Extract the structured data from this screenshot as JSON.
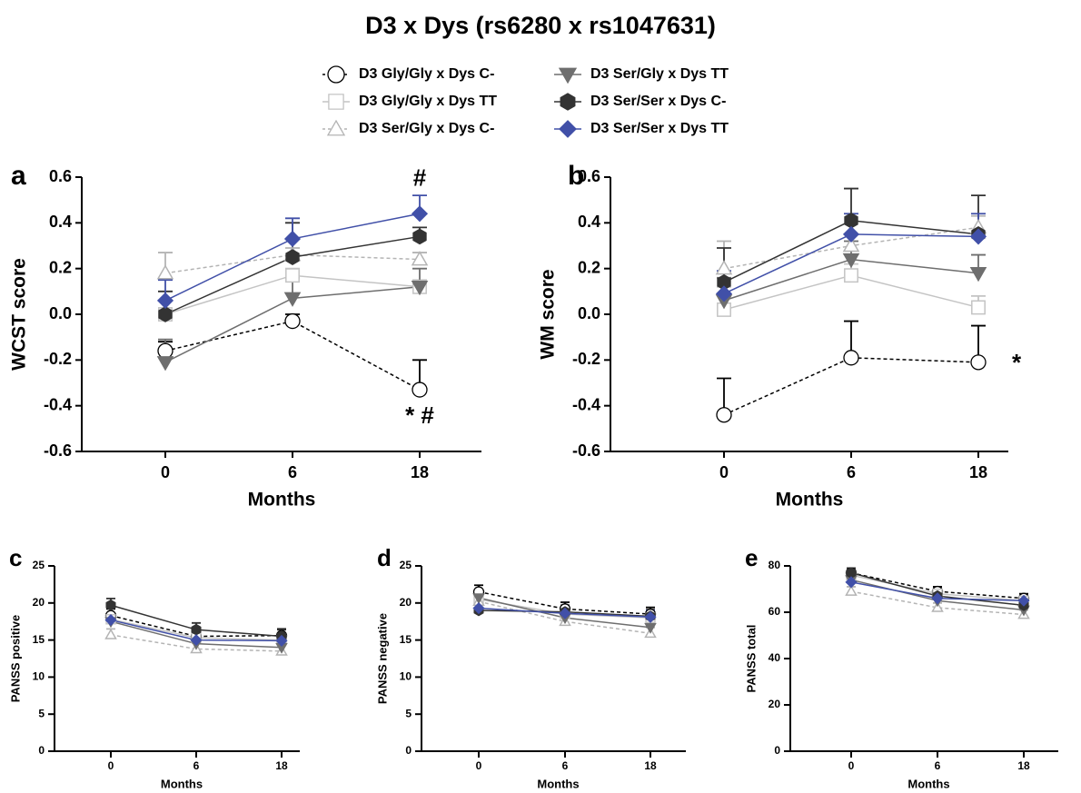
{
  "title": "D3 x Dys (rs6280 x rs1047631)",
  "legend": [
    {
      "name": "D3 Gly/Gly x Dys C-",
      "color": "#000000",
      "marker": "circle",
      "filled": false,
      "dashed": true
    },
    {
      "name": "D3 Gly/Gly x Dys TT",
      "color": "#c4c4c4",
      "marker": "square",
      "filled": false,
      "dashed": false
    },
    {
      "name": "D3 Ser/Gly x Dys C-",
      "color": "#b4b4b4",
      "marker": "triangle-up",
      "filled": false,
      "dashed": true
    },
    {
      "name": "D3 Ser/Gly x Dys TT",
      "color": "#6e6e6e",
      "marker": "triangle-down",
      "filled": true,
      "dashed": false
    },
    {
      "name": "D3 Ser/Ser x Dys C-",
      "color": "#333333",
      "marker": "hexagon",
      "filled": true,
      "dashed": false
    },
    {
      "name": "D3 Ser/Ser x Dys TT",
      "color": "#4150a8",
      "marker": "diamond",
      "filled": true,
      "dashed": false
    }
  ],
  "chart_data": [
    {
      "type": "line",
      "panel": "a",
      "ylabel": "WCST score",
      "xlabel": "Months",
      "categories": [
        "0",
        "6",
        "18"
      ],
      "ylim": [
        -0.6,
        0.6
      ],
      "yticks": [
        -0.6,
        -0.4,
        -0.2,
        {
          "value": 0,
          "label": "0.0"
        },
        0.2,
        0.4,
        0.6
      ],
      "series": [
        {
          "values": [
            -0.16,
            -0.03,
            -0.33
          ],
          "errors": [
            0.04,
            0.03,
            0.13
          ]
        },
        {
          "values": [
            0.0,
            0.17,
            0.12
          ],
          "errors": [
            0.02,
            0.03,
            0.03
          ]
        },
        {
          "values": [
            0.18,
            0.26,
            0.24
          ],
          "errors": [
            0.09,
            0.03,
            0.03
          ]
        },
        {
          "values": [
            -0.21,
            0.07,
            0.12
          ],
          "errors": [
            0.1,
            0.09,
            0.08
          ]
        },
        {
          "values": [
            0.0,
            0.25,
            0.34
          ],
          "errors": [
            0.1,
            0.15,
            0.04
          ]
        },
        {
          "values": [
            0.06,
            0.33,
            0.44
          ],
          "errors": [
            0.09,
            0.09,
            0.08
          ]
        }
      ],
      "annotations": [
        {
          "text": "#",
          "category": 2,
          "y": 0.59
        },
        {
          "text": "* #",
          "category": 2,
          "y": -0.45
        }
      ]
    },
    {
      "type": "line",
      "panel": "b",
      "ylabel": "WM score",
      "xlabel": "Months",
      "categories": [
        "0",
        "6",
        "18"
      ],
      "ylim": [
        -0.6,
        0.6
      ],
      "yticks": [
        -0.6,
        -0.4,
        -0.2,
        {
          "value": 0,
          "label": "0.0"
        },
        0.2,
        0.4,
        0.6
      ],
      "series": [
        {
          "values": [
            -0.44,
            -0.19,
            -0.21
          ],
          "errors": [
            0.16,
            0.16,
            0.16
          ]
        },
        {
          "values": [
            0.02,
            0.17,
            0.03
          ],
          "errors": [
            0.1,
            0.05,
            0.05
          ]
        },
        {
          "values": [
            0.2,
            0.3,
            0.38
          ],
          "errors": [
            0.12,
            0.05,
            0.05
          ]
        },
        {
          "values": [
            0.06,
            0.24,
            0.18
          ],
          "errors": [
            0.1,
            0.08,
            0.08
          ]
        },
        {
          "values": [
            0.14,
            0.41,
            0.35
          ],
          "errors": [
            0.15,
            0.14,
            0.17
          ]
        },
        {
          "values": [
            0.09,
            0.35,
            0.34
          ],
          "errors": [
            0.1,
            0.09,
            0.1
          ]
        }
      ],
      "annotations": [
        {
          "text": "*",
          "category": 2.3,
          "y": -0.22
        }
      ]
    },
    {
      "type": "line",
      "panel": "c",
      "ylabel": "PANSS positive",
      "xlabel": "Months",
      "categories": [
        "0",
        "6",
        "18"
      ],
      "ylim": [
        0,
        25
      ],
      "yticks": [
        0,
        5,
        10,
        15,
        20,
        25
      ],
      "series": [
        {
          "values": [
            18.3,
            15.5,
            15.6
          ],
          "errors": [
            0.9,
            0.9,
            0.9
          ]
        },
        {
          "values": [
            17.8,
            15.3,
            15.0
          ],
          "errors": [
            0.9,
            0.9,
            0.9
          ]
        },
        {
          "values": [
            15.7,
            13.8,
            13.5
          ],
          "errors": [
            0.8,
            0.8,
            0.8
          ]
        },
        {
          "values": [
            17.5,
            14.5,
            14.0
          ],
          "errors": [
            0.9,
            0.9,
            0.9
          ]
        },
        {
          "values": [
            19.7,
            16.4,
            15.5
          ],
          "errors": [
            0.9,
            0.9,
            0.9
          ]
        },
        {
          "values": [
            17.7,
            15.0,
            14.9
          ],
          "errors": [
            0.9,
            0.9,
            0.9
          ]
        }
      ]
    },
    {
      "type": "line",
      "panel": "d",
      "ylabel": "PANSS negative",
      "xlabel": "Months",
      "categories": [
        "0",
        "6",
        "18"
      ],
      "ylim": [
        0,
        25
      ],
      "yticks": [
        0,
        5,
        10,
        15,
        20,
        25
      ],
      "series": [
        {
          "values": [
            21.5,
            19.2,
            18.5
          ],
          "errors": [
            0.9,
            0.9,
            0.9
          ]
        },
        {
          "values": [
            20.5,
            18.5,
            18.0
          ],
          "errors": [
            0.9,
            0.9,
            0.9
          ]
        },
        {
          "values": [
            20.2,
            17.5,
            15.9
          ],
          "errors": [
            0.8,
            0.8,
            0.8
          ]
        },
        {
          "values": [
            20.7,
            18.0,
            16.7
          ],
          "errors": [
            0.9,
            0.9,
            0.9
          ]
        },
        {
          "values": [
            19.0,
            18.8,
            18.2
          ],
          "errors": [
            0.9,
            0.9,
            0.9
          ]
        },
        {
          "values": [
            19.3,
            18.6,
            18.1
          ],
          "errors": [
            0.9,
            0.9,
            0.9
          ]
        }
      ]
    },
    {
      "type": "line",
      "panel": "e",
      "ylabel": "PANSS total",
      "xlabel": "Months",
      "categories": [
        "0",
        "6",
        "18"
      ],
      "ylim": [
        0,
        80
      ],
      "yticks": [
        0,
        20,
        40,
        60,
        80
      ],
      "series": [
        {
          "values": [
            77,
            69,
            66
          ],
          "errors": [
            2,
            2,
            2
          ]
        },
        {
          "values": [
            76,
            68,
            65
          ],
          "errors": [
            2,
            2,
            2
          ]
        },
        {
          "values": [
            69,
            62,
            59
          ],
          "errors": [
            2,
            2,
            2
          ]
        },
        {
          "values": [
            74,
            65,
            61
          ],
          "errors": [
            2,
            2,
            2
          ]
        },
        {
          "values": [
            77,
            67,
            63
          ],
          "errors": [
            2,
            2,
            2
          ]
        },
        {
          "values": [
            73,
            66,
            65
          ],
          "errors": [
            2,
            2,
            2
          ]
        }
      ]
    }
  ]
}
